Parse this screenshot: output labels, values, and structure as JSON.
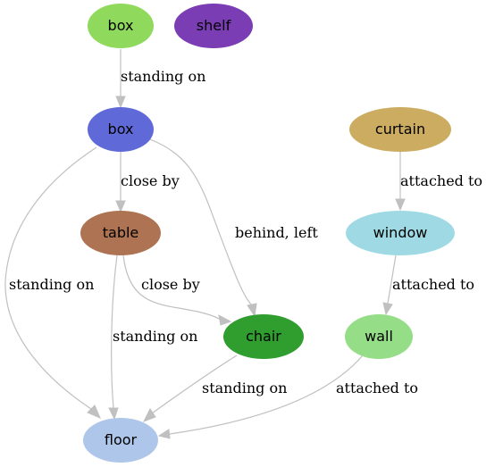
{
  "nodes": {
    "box_top": {
      "label": "box",
      "color": "#8fd95c"
    },
    "shelf": {
      "label": "shelf",
      "color": "#7b3db3"
    },
    "box_mid": {
      "label": "box",
      "color": "#5f6ad8"
    },
    "curtain": {
      "label": "curtain",
      "color": "#cbac61"
    },
    "table": {
      "label": "table",
      "color": "#ad7352"
    },
    "window": {
      "label": "window",
      "color": "#9ed9e4"
    },
    "chair": {
      "label": "chair",
      "color": "#2f9e2f"
    },
    "wall": {
      "label": "wall",
      "color": "#95dd86"
    },
    "floor": {
      "label": "floor",
      "color": "#adc6ea"
    }
  },
  "edges": {
    "box_top_box_mid": "standing on",
    "box_mid_table": "close by",
    "box_mid_chair": "behind, left",
    "box_mid_floor": "standing on",
    "table_chair": "close by",
    "table_floor": "standing on",
    "chair_floor": "standing on",
    "curtain_window": "attached to",
    "window_wall": "attached to",
    "wall_floor": "attached to"
  },
  "edge_color": "#c0c0c0"
}
